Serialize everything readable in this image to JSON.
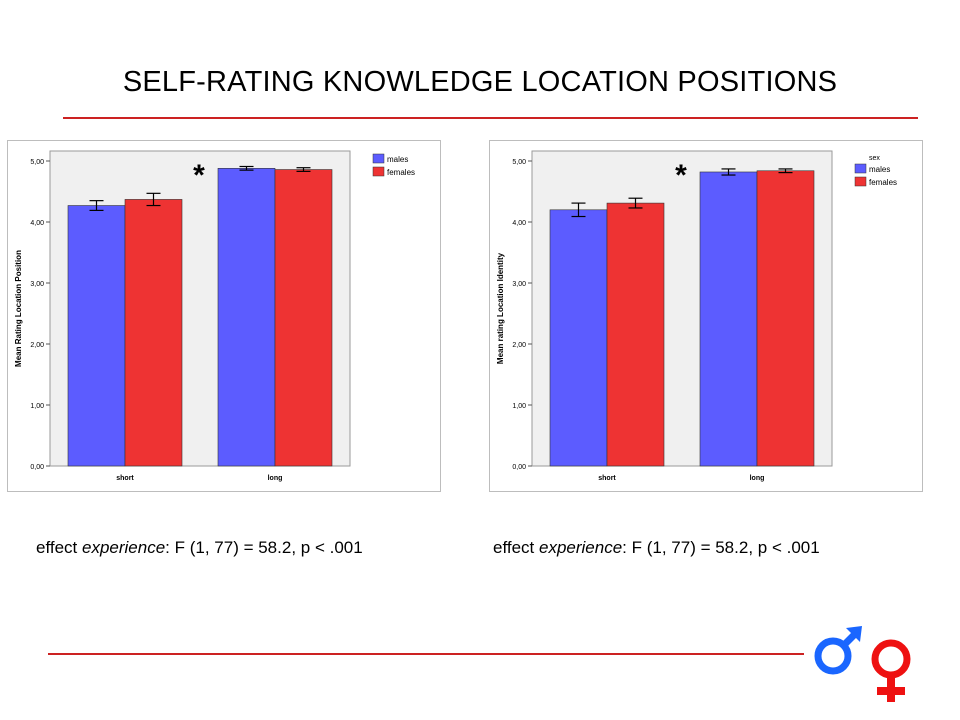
{
  "slide": {
    "title": "SELF-RATING KNOWLEDGE LOCATION POSITIONS",
    "accent_color": "#cc2222",
    "stats": [
      {
        "prefix": "effect ",
        "emph": "experience",
        "suffix": ": F (1, 77) = 58.2, p < .001"
      },
      {
        "prefix": "effect ",
        "emph": "experience",
        "suffix": ": F (1, 77) = 58.2, p < .001"
      }
    ],
    "icons": [
      "male-symbol-icon",
      "female-symbol-icon"
    ],
    "icon_colors": {
      "male": "#1a66ff",
      "female": "#ee1111"
    }
  },
  "chart_data": [
    {
      "type": "bar",
      "title": "",
      "xlabel": "",
      "ylabel": "Mean Rating Location Position",
      "categories": [
        "short",
        "long"
      ],
      "ylim": [
        0,
        5
      ],
      "yticks": [
        "0,00",
        "1,00",
        "2,00",
        "3,00",
        "4,00",
        "5,00"
      ],
      "legend_title": "",
      "legend_position": "top-right",
      "annotation": "*",
      "series": [
        {
          "name": "males",
          "color": "#5c5cff",
          "values": [
            4.27,
            4.88
          ],
          "errors": [
            0.08,
            0.03
          ]
        },
        {
          "name": "females",
          "color": "#ee3333",
          "values": [
            4.37,
            4.86
          ],
          "errors": [
            0.1,
            0.03
          ]
        }
      ]
    },
    {
      "type": "bar",
      "title": "",
      "xlabel": "",
      "ylabel": "Mean rating Location Identity",
      "categories": [
        "short",
        "long"
      ],
      "ylim": [
        0,
        5
      ],
      "yticks": [
        "0,00",
        "1,00",
        "2,00",
        "3,00",
        "4,00",
        "5,00"
      ],
      "legend_title": "sex",
      "legend_position": "top-right",
      "annotation": "*",
      "series": [
        {
          "name": "males",
          "color": "#5c5cff",
          "values": [
            4.2,
            4.82
          ],
          "errors": [
            0.11,
            0.05
          ]
        },
        {
          "name": "females",
          "color": "#ee3333",
          "values": [
            4.31,
            4.84
          ],
          "errors": [
            0.08,
            0.03
          ]
        }
      ]
    }
  ]
}
